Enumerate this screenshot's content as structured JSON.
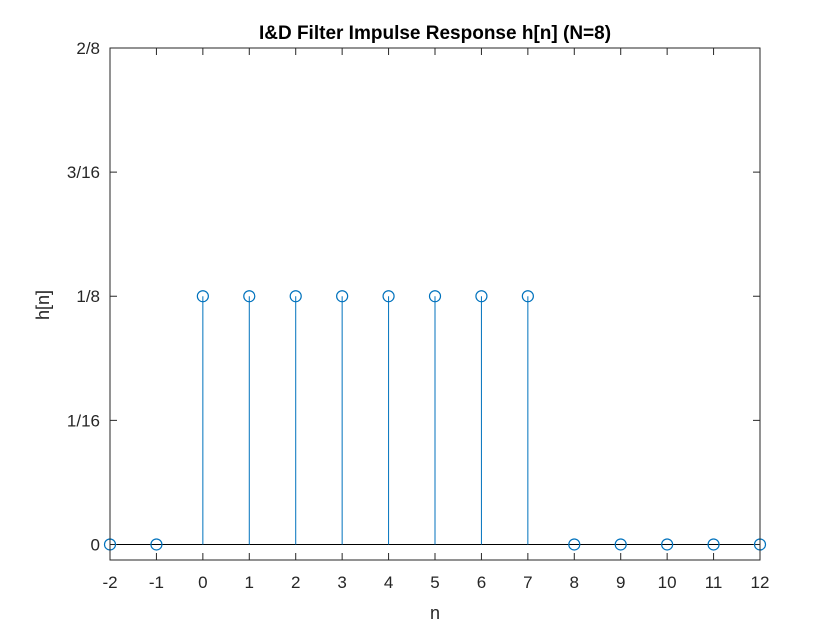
{
  "chart_data": {
    "type": "stem",
    "title": "I&D Filter Impulse Response h[n] (N=8)",
    "xlabel": "n",
    "ylabel": "h[n]",
    "xlim": [
      -2,
      12
    ],
    "ylim": [
      -0.0078125,
      0.25
    ],
    "x_ticks": [
      {
        "value": -2,
        "label": "-2"
      },
      {
        "value": -1,
        "label": "-1"
      },
      {
        "value": 0,
        "label": "0"
      },
      {
        "value": 1,
        "label": "1"
      },
      {
        "value": 2,
        "label": "2"
      },
      {
        "value": 3,
        "label": "3"
      },
      {
        "value": 4,
        "label": "4"
      },
      {
        "value": 5,
        "label": "5"
      },
      {
        "value": 6,
        "label": "6"
      },
      {
        "value": 7,
        "label": "7"
      },
      {
        "value": 8,
        "label": "8"
      },
      {
        "value": 9,
        "label": "9"
      },
      {
        "value": 10,
        "label": "10"
      },
      {
        "value": 11,
        "label": "11"
      },
      {
        "value": 12,
        "label": "12"
      }
    ],
    "y_ticks": [
      {
        "value": 0,
        "label": "0"
      },
      {
        "value": 0.0625,
        "label": "1/16"
      },
      {
        "value": 0.125,
        "label": "1/8"
      },
      {
        "value": 0.1875,
        "label": "3/16"
      },
      {
        "value": 0.25,
        "label": "2/8"
      }
    ],
    "series": [
      {
        "x": [
          -2,
          -1,
          0,
          1,
          2,
          3,
          4,
          5,
          6,
          7,
          8,
          9,
          10,
          11,
          12
        ],
        "values": [
          0,
          0,
          0.125,
          0.125,
          0.125,
          0.125,
          0.125,
          0.125,
          0.125,
          0.125,
          0,
          0,
          0,
          0,
          0
        ]
      }
    ],
    "baseline": 0,
    "grid": false,
    "color": "#0072bd"
  }
}
